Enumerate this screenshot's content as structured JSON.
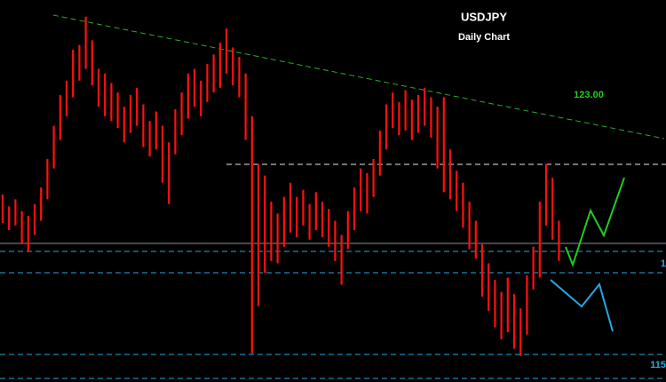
{
  "chart_data": {
    "type": "hilo",
    "title": "USDJPY",
    "subtitle": "Daily Chart",
    "annotations": [
      {
        "text": "123.00",
        "color": "#22cc22"
      },
      {
        "text": "1",
        "color": "#29a8e0"
      },
      {
        "text": "115",
        "color": "#29a8e0"
      }
    ],
    "ylim": [
      113.8,
      129.9
    ],
    "series": [
      {
        "color": "#ff1010",
        "high": [
          121.7,
          121.2,
          121.5,
          121.0,
          120.8,
          121.3,
          122.0,
          123.2,
          124.6,
          125.9,
          126.5,
          127.8,
          128.0,
          129.2,
          128.2,
          127.0,
          126.8,
          126.4,
          126.0,
          125.4,
          125.9,
          126.2,
          125.5,
          124.8,
          125.2,
          124.6,
          123.9,
          125.3,
          126.0,
          126.8,
          127.0,
          126.5,
          127.2,
          127.6,
          128.1,
          128.7,
          127.9,
          127.5,
          126.8,
          125.0,
          123.0,
          122.5,
          121.4,
          120.9,
          121.6,
          122.2,
          121.6,
          121.9,
          121.3,
          121.8,
          121.4,
          121.1,
          120.6,
          120.0,
          121.0,
          122.0,
          122.8,
          122.6,
          123.2,
          124.4,
          125.5,
          126.0,
          125.6,
          126.1,
          125.7,
          125.9,
          126.2,
          125.8,
          125.4,
          125.8,
          123.6,
          122.7,
          122.2,
          121.4,
          120.6,
          119.6,
          118.8,
          118.1,
          117.6,
          118.2,
          117.5,
          116.9,
          118.3,
          119.5,
          121.4,
          123.0,
          122.4,
          120.6
        ],
        "low": [
          120.5,
          120.2,
          120.4,
          119.6,
          119.3,
          120.0,
          120.6,
          121.5,
          122.8,
          124.0,
          125.0,
          125.8,
          126.5,
          127.0,
          126.3,
          125.4,
          125.0,
          124.8,
          124.5,
          123.9,
          124.3,
          124.6,
          123.7,
          123.3,
          123.6,
          122.2,
          121.3,
          123.4,
          124.2,
          124.9,
          125.4,
          125.0,
          125.6,
          126.0,
          126.2,
          126.8,
          126.3,
          125.8,
          124.0,
          115.0,
          117.0,
          118.4,
          118.9,
          118.8,
          119.5,
          120.1,
          119.9,
          120.4,
          119.8,
          120.2,
          119.9,
          119.5,
          118.9,
          117.9,
          119.4,
          120.2,
          121.0,
          120.9,
          121.6,
          122.5,
          123.6,
          124.5,
          124.2,
          124.4,
          124.0,
          124.3,
          124.6,
          124.1,
          122.8,
          121.8,
          121.5,
          121.0,
          120.3,
          119.4,
          119.0,
          117.4,
          116.8,
          116.1,
          115.6,
          115.9,
          115.2,
          114.9,
          115.8,
          117.7,
          118.2,
          120.4,
          119.8,
          118.9
        ]
      }
    ]
  }
}
